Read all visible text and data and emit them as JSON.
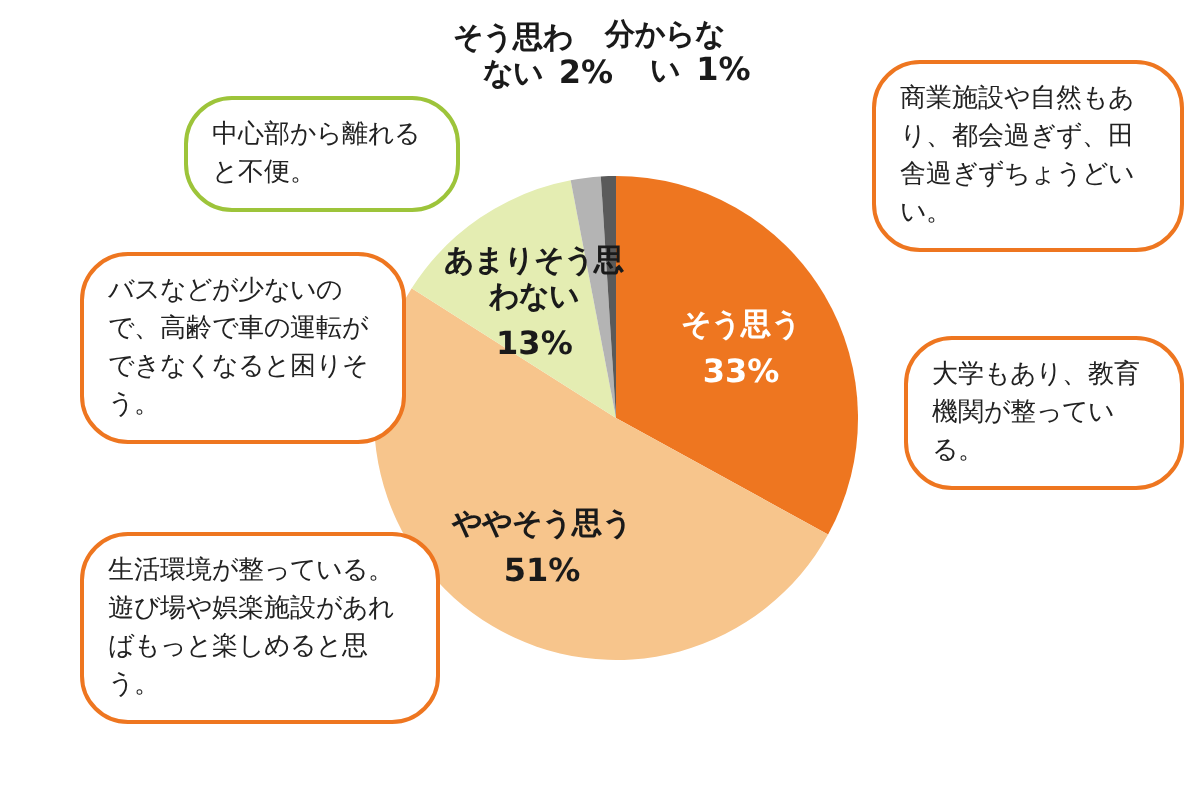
{
  "chart_data": {
    "type": "pie",
    "categories": [
      "そう思う",
      "ややそう思う",
      "あまりそう思わない",
      "そう思わない",
      "分からない"
    ],
    "values": [
      33,
      51,
      13,
      2,
      1
    ],
    "value_labels": [
      "33%",
      "51%",
      "13%",
      "2%",
      "1%"
    ],
    "colors": [
      "#ee7620",
      "#f7c58c",
      "#e4edb2",
      "#b4b4b4",
      "#5a5a5a"
    ],
    "legend": false,
    "annotations": [
      "商業施設や自然もあり、都会過ぎず、田舎過ぎずちょうどいい。",
      "大学もあり、教育機関が整っている。",
      "中心部から離れると不便。",
      "バスなどが少ないので、高齢で車の運転ができなくなると困りそう。",
      "生活環境が整っている。遊び場や娯楽施設があればもっと楽しめると思う。"
    ]
  }
}
